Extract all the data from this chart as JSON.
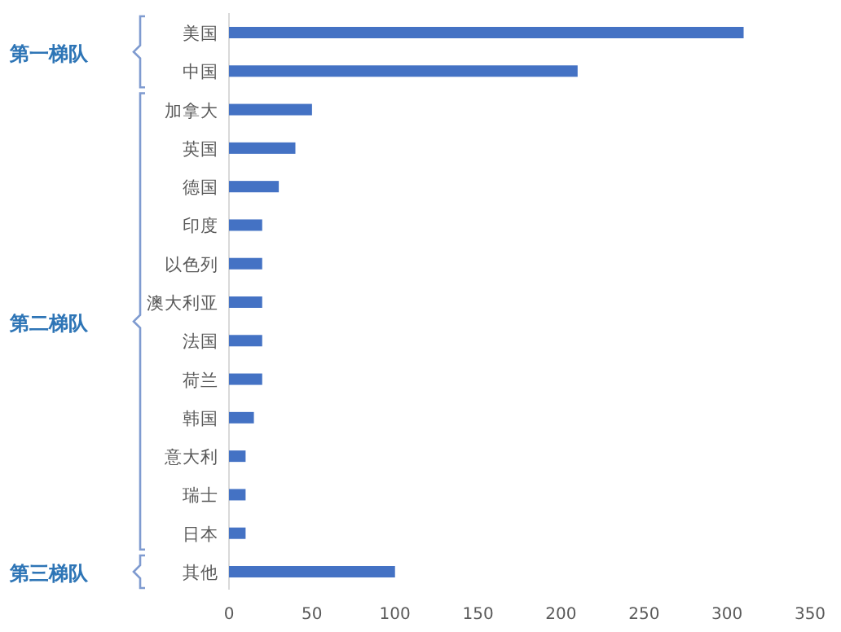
{
  "chart_data": {
    "type": "bar",
    "orientation": "horizontal",
    "categories": [
      "美国",
      "中国",
      "加拿大",
      "英国",
      "德国",
      "印度",
      "以色列",
      "澳大利亚",
      "法国",
      "荷兰",
      "韩国",
      "意大利",
      "瑞士",
      "日本",
      "其他"
    ],
    "values": [
      310,
      210,
      50,
      40,
      30,
      20,
      20,
      20,
      20,
      20,
      15,
      10,
      10,
      10,
      100
    ],
    "color": "#4472c4",
    "xlim": [
      0,
      350
    ],
    "xticks": [
      0,
      50,
      100,
      150,
      200,
      250,
      300,
      350
    ],
    "annotations": [
      "第一梯队",
      "第二梯队",
      "第三梯队"
    ],
    "grid": false
  }
}
